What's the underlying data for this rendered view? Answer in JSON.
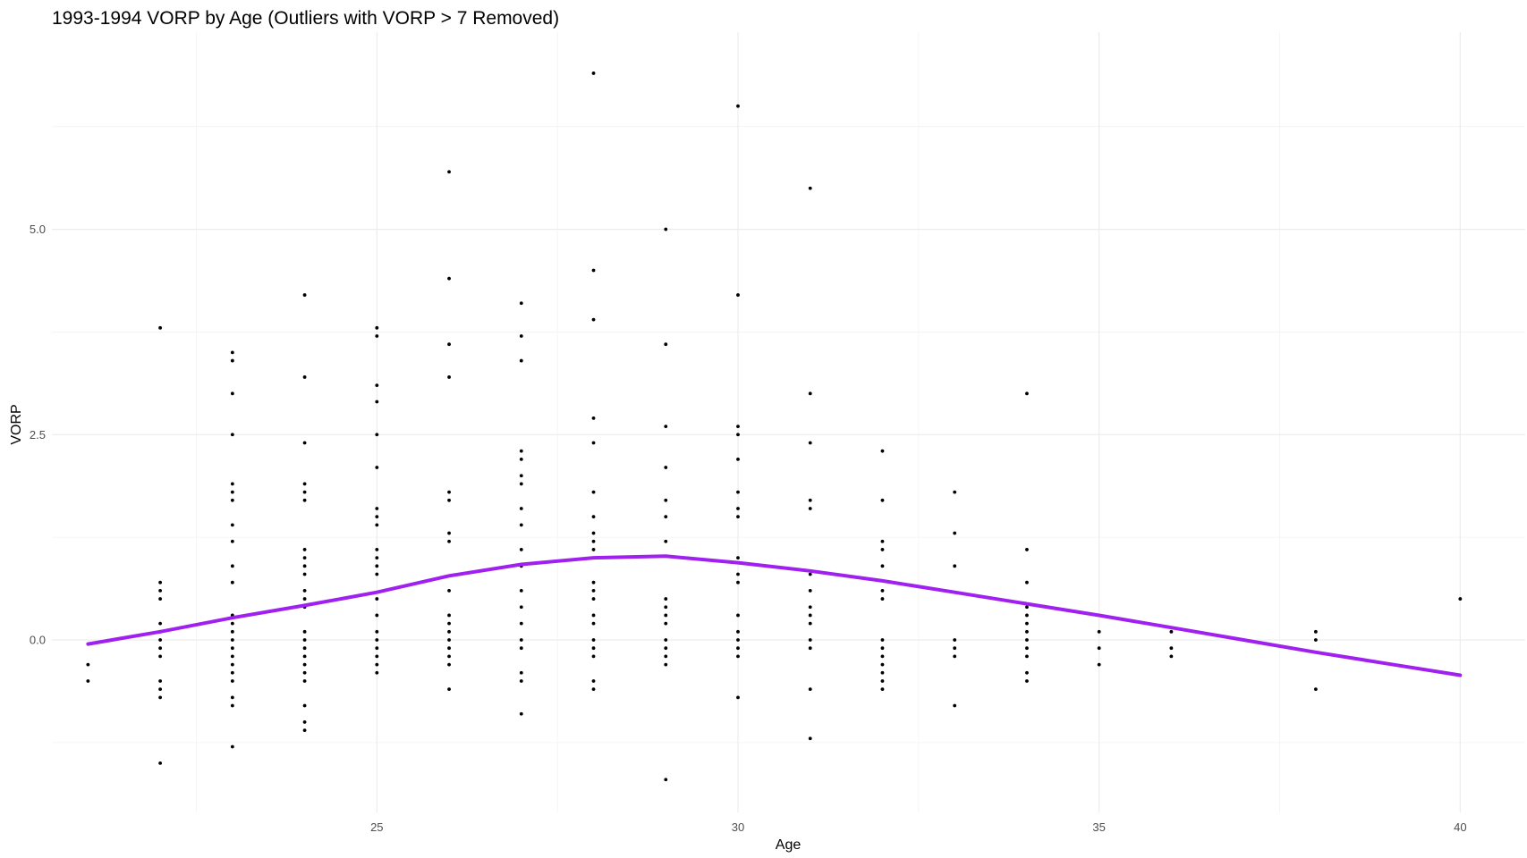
{
  "chart_data": {
    "type": "scatter",
    "title": "1993-1994 VORP by Age (Outliers with VORP > 7 Removed)",
    "xlabel": "Age",
    "ylabel": "VORP",
    "xlim": [
      20.5,
      40.9
    ],
    "ylim": [
      -2.1,
      7.4
    ],
    "x_ticks": [
      25,
      30,
      35,
      40
    ],
    "x_tick_labels": [
      "25",
      "30",
      "35",
      "40"
    ],
    "y_ticks": [
      0,
      2.5,
      5
    ],
    "y_tick_labels": [
      "0.0",
      "2.5",
      "5.0"
    ],
    "grid": true,
    "legend": "none",
    "colors": {
      "points": "#000000",
      "trend": "#a020f0",
      "grid": "#ebebeb"
    },
    "series": [
      {
        "type": "scatter",
        "points": [
          [
            21,
            -0.3
          ],
          [
            21,
            -0.5
          ],
          [
            22,
            3.8
          ],
          [
            22,
            0.7
          ],
          [
            22,
            0.6
          ],
          [
            22,
            0.5
          ],
          [
            22,
            0.2
          ],
          [
            22,
            0.1
          ],
          [
            22,
            0.0
          ],
          [
            22,
            -0.1
          ],
          [
            22,
            -0.2
          ],
          [
            22,
            -0.5
          ],
          [
            22,
            -0.6
          ],
          [
            22,
            -0.7
          ],
          [
            22,
            -1.5
          ],
          [
            23,
            3.5
          ],
          [
            23,
            3.4
          ],
          [
            23,
            3.0
          ],
          [
            23,
            2.5
          ],
          [
            23,
            1.9
          ],
          [
            23,
            1.8
          ],
          [
            23,
            1.7
          ],
          [
            23,
            1.4
          ],
          [
            23,
            1.2
          ],
          [
            23,
            0.9
          ],
          [
            23,
            0.7
          ],
          [
            23,
            0.3
          ],
          [
            23,
            0.2
          ],
          [
            23,
            0.1
          ],
          [
            23,
            0.0
          ],
          [
            23,
            -0.1
          ],
          [
            23,
            -0.2
          ],
          [
            23,
            -0.3
          ],
          [
            23,
            -0.4
          ],
          [
            23,
            -0.5
          ],
          [
            23,
            -0.7
          ],
          [
            23,
            -0.8
          ],
          [
            23,
            -1.3
          ],
          [
            24,
            4.2
          ],
          [
            24,
            3.2
          ],
          [
            24,
            2.4
          ],
          [
            24,
            1.9
          ],
          [
            24,
            1.8
          ],
          [
            24,
            1.7
          ],
          [
            24,
            1.1
          ],
          [
            24,
            1.0
          ],
          [
            24,
            0.9
          ],
          [
            24,
            0.8
          ],
          [
            24,
            0.6
          ],
          [
            24,
            0.5
          ],
          [
            24,
            0.4
          ],
          [
            24,
            0.1
          ],
          [
            24,
            0.0
          ],
          [
            24,
            -0.1
          ],
          [
            24,
            -0.2
          ],
          [
            24,
            -0.3
          ],
          [
            24,
            -0.4
          ],
          [
            24,
            -0.5
          ],
          [
            24,
            -0.8
          ],
          [
            24,
            -1.0
          ],
          [
            24,
            -1.1
          ],
          [
            25,
            3.8
          ],
          [
            25,
            3.7
          ],
          [
            25,
            3.1
          ],
          [
            25,
            2.9
          ],
          [
            25,
            2.5
          ],
          [
            25,
            2.1
          ],
          [
            25,
            1.6
          ],
          [
            25,
            1.5
          ],
          [
            25,
            1.4
          ],
          [
            25,
            1.1
          ],
          [
            25,
            1.0
          ],
          [
            25,
            0.9
          ],
          [
            25,
            0.8
          ],
          [
            25,
            0.5
          ],
          [
            25,
            0.3
          ],
          [
            25,
            0.1
          ],
          [
            25,
            0.0
          ],
          [
            25,
            -0.1
          ],
          [
            25,
            -0.2
          ],
          [
            25,
            -0.3
          ],
          [
            25,
            -0.4
          ],
          [
            26,
            5.7
          ],
          [
            26,
            4.4
          ],
          [
            26,
            3.6
          ],
          [
            26,
            3.2
          ],
          [
            26,
            1.8
          ],
          [
            26,
            1.7
          ],
          [
            26,
            1.3
          ],
          [
            26,
            1.2
          ],
          [
            26,
            0.6
          ],
          [
            26,
            0.3
          ],
          [
            26,
            0.2
          ],
          [
            26,
            0.1
          ],
          [
            26,
            0.0
          ],
          [
            26,
            -0.1
          ],
          [
            26,
            -0.2
          ],
          [
            26,
            -0.3
          ],
          [
            26,
            -0.6
          ],
          [
            27,
            4.1
          ],
          [
            27,
            3.7
          ],
          [
            27,
            3.4
          ],
          [
            27,
            2.3
          ],
          [
            27,
            2.2
          ],
          [
            27,
            2.0
          ],
          [
            27,
            1.9
          ],
          [
            27,
            1.6
          ],
          [
            27,
            1.4
          ],
          [
            27,
            1.1
          ],
          [
            27,
            0.9
          ],
          [
            27,
            0.6
          ],
          [
            27,
            0.4
          ],
          [
            27,
            0.2
          ],
          [
            27,
            0.0
          ],
          [
            27,
            -0.1
          ],
          [
            27,
            -0.4
          ],
          [
            27,
            -0.5
          ],
          [
            27,
            -0.9
          ],
          [
            28,
            6.9
          ],
          [
            28,
            4.5
          ],
          [
            28,
            3.9
          ],
          [
            28,
            2.7
          ],
          [
            28,
            2.4
          ],
          [
            28,
            1.8
          ],
          [
            28,
            1.5
          ],
          [
            28,
            1.3
          ],
          [
            28,
            1.2
          ],
          [
            28,
            1.1
          ],
          [
            28,
            0.7
          ],
          [
            28,
            0.6
          ],
          [
            28,
            0.5
          ],
          [
            28,
            0.3
          ],
          [
            28,
            0.2
          ],
          [
            28,
            0.0
          ],
          [
            28,
            -0.1
          ],
          [
            28,
            -0.2
          ],
          [
            28,
            -0.5
          ],
          [
            28,
            -0.6
          ],
          [
            29,
            5.0
          ],
          [
            29,
            3.6
          ],
          [
            29,
            2.6
          ],
          [
            29,
            2.1
          ],
          [
            29,
            1.7
          ],
          [
            29,
            1.5
          ],
          [
            29,
            1.2
          ],
          [
            29,
            0.5
          ],
          [
            29,
            0.4
          ],
          [
            29,
            0.3
          ],
          [
            29,
            0.2
          ],
          [
            29,
            0.0
          ],
          [
            29,
            -0.1
          ],
          [
            29,
            -0.2
          ],
          [
            29,
            -0.3
          ],
          [
            29,
            -1.7
          ],
          [
            30,
            6.5
          ],
          [
            30,
            4.2
          ],
          [
            30,
            2.6
          ],
          [
            30,
            2.5
          ],
          [
            30,
            2.2
          ],
          [
            30,
            1.8
          ],
          [
            30,
            1.6
          ],
          [
            30,
            1.5
          ],
          [
            30,
            1.0
          ],
          [
            30,
            0.8
          ],
          [
            30,
            0.7
          ],
          [
            30,
            0.3
          ],
          [
            30,
            0.1
          ],
          [
            30,
            0.0
          ],
          [
            30,
            -0.1
          ],
          [
            30,
            -0.2
          ],
          [
            30,
            -0.7
          ],
          [
            31,
            5.5
          ],
          [
            31,
            3.0
          ],
          [
            31,
            2.4
          ],
          [
            31,
            1.7
          ],
          [
            31,
            1.6
          ],
          [
            31,
            0.8
          ],
          [
            31,
            0.6
          ],
          [
            31,
            0.4
          ],
          [
            31,
            0.3
          ],
          [
            31,
            0.2
          ],
          [
            31,
            0.0
          ],
          [
            31,
            -0.1
          ],
          [
            31,
            -0.6
          ],
          [
            31,
            -1.2
          ],
          [
            32,
            2.3
          ],
          [
            32,
            1.7
          ],
          [
            32,
            1.2
          ],
          [
            32,
            1.1
          ],
          [
            32,
            0.9
          ],
          [
            32,
            0.6
          ],
          [
            32,
            0.5
          ],
          [
            32,
            0.0
          ],
          [
            32,
            -0.1
          ],
          [
            32,
            -0.2
          ],
          [
            32,
            -0.3
          ],
          [
            32,
            -0.4
          ],
          [
            32,
            -0.5
          ],
          [
            32,
            -0.6
          ],
          [
            33,
            1.8
          ],
          [
            33,
            1.3
          ],
          [
            33,
            0.9
          ],
          [
            33,
            0.0
          ],
          [
            33,
            -0.1
          ],
          [
            33,
            -0.2
          ],
          [
            33,
            -0.8
          ],
          [
            34,
            3.0
          ],
          [
            34,
            1.1
          ],
          [
            34,
            0.7
          ],
          [
            34,
            0.4
          ],
          [
            34,
            0.3
          ],
          [
            34,
            0.2
          ],
          [
            34,
            0.1
          ],
          [
            34,
            0.0
          ],
          [
            34,
            -0.1
          ],
          [
            34,
            -0.2
          ],
          [
            34,
            -0.4
          ],
          [
            34,
            -0.5
          ],
          [
            35,
            0.1
          ],
          [
            35,
            -0.1
          ],
          [
            35,
            -0.3
          ],
          [
            36,
            0.1
          ],
          [
            36,
            -0.1
          ],
          [
            36,
            -0.2
          ],
          [
            38,
            0.1
          ],
          [
            38,
            0.0
          ],
          [
            38,
            -0.6
          ],
          [
            40,
            0.5
          ]
        ]
      },
      {
        "type": "line",
        "points": [
          [
            21,
            -0.05
          ],
          [
            22,
            0.1
          ],
          [
            23,
            0.27
          ],
          [
            24,
            0.42
          ],
          [
            25,
            0.58
          ],
          [
            26,
            0.78
          ],
          [
            27,
            0.92
          ],
          [
            28,
            1.0
          ],
          [
            29,
            1.02
          ],
          [
            30,
            0.94
          ],
          [
            31,
            0.84
          ],
          [
            32,
            0.72
          ],
          [
            33,
            0.58
          ],
          [
            34,
            0.44
          ],
          [
            35,
            0.3
          ],
          [
            36,
            0.15
          ],
          [
            37,
            0.0
          ],
          [
            38,
            -0.15
          ],
          [
            39,
            -0.29
          ],
          [
            40,
            -0.43
          ]
        ]
      }
    ]
  }
}
